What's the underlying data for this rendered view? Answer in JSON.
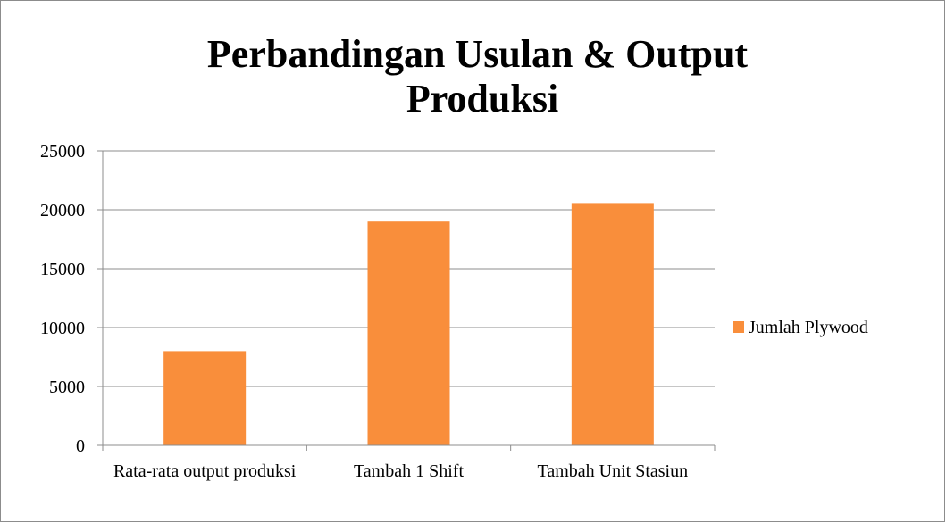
{
  "chart_data": {
    "type": "bar",
    "title": "Perbandingan Usulan & Output Produksi",
    "categories": [
      "Rata-rata output produksi",
      "Tambah 1 Shift",
      "Tambah Unit Stasiun"
    ],
    "series": [
      {
        "name": "Jumlah Plywood",
        "color": "#f98e3b",
        "values": [
          8000,
          19000,
          20500
        ]
      }
    ],
    "ylim": [
      0,
      25000
    ],
    "yticks": [
      0,
      5000,
      10000,
      15000,
      20000,
      25000
    ],
    "grid": true,
    "legend": "right"
  }
}
